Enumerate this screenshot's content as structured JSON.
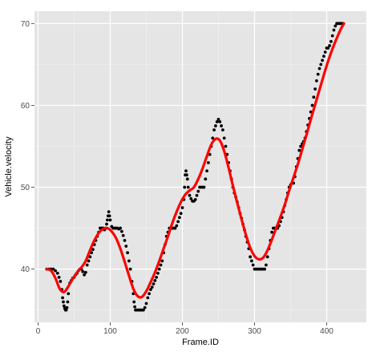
{
  "chart_data": {
    "type": "scatter",
    "xlabel": "Frame.ID",
    "ylabel": "Vehicle.velocity",
    "xlim": [
      -5,
      455
    ],
    "ylim": [
      33.5,
      71.5
    ],
    "x_ticks": [
      0,
      100,
      200,
      300,
      400
    ],
    "x_tick_labels": [
      "0",
      "100",
      "200",
      "300",
      "400"
    ],
    "y_ticks": [
      40,
      50,
      60,
      70
    ],
    "y_tick_labels": [
      "40",
      "50",
      "60",
      "70"
    ],
    "grid": true,
    "legend": "none",
    "colors": {
      "panel": "#e5e5e5",
      "grid_major": "#ffffff",
      "grid_minor": "#f2f2f2",
      "points": "#000000",
      "smooth": "#ff0000"
    },
    "series": [
      {
        "kind": "points",
        "points": [
          [
            12,
            40
          ],
          [
            15,
            40
          ],
          [
            18,
            40
          ],
          [
            21,
            40
          ],
          [
            24,
            39.8
          ],
          [
            27,
            39.5
          ],
          [
            29,
            39
          ],
          [
            31,
            38.5
          ],
          [
            33,
            37.5
          ],
          [
            34,
            36.5
          ],
          [
            35,
            36
          ],
          [
            36,
            35.5
          ],
          [
            37,
            35.2
          ],
          [
            38,
            35
          ],
          [
            39,
            35
          ],
          [
            40,
            35.3
          ],
          [
            41,
            36
          ],
          [
            42,
            37
          ],
          [
            44,
            38.3
          ],
          [
            46,
            38.6
          ],
          [
            48,
            38.9
          ],
          [
            50,
            39
          ],
          [
            52,
            39.3
          ],
          [
            54,
            39.5
          ],
          [
            56,
            39.8
          ],
          [
            58,
            40
          ],
          [
            60,
            40
          ],
          [
            62,
            39.7
          ],
          [
            64,
            39.3
          ],
          [
            66,
            39.6
          ],
          [
            68,
            40.5
          ],
          [
            70,
            41
          ],
          [
            72,
            41.5
          ],
          [
            74,
            42
          ],
          [
            76,
            42.4
          ],
          [
            78,
            43
          ],
          [
            80,
            43.5
          ],
          [
            82,
            44
          ],
          [
            84,
            44.5
          ],
          [
            86,
            45
          ],
          [
            88,
            45
          ],
          [
            90,
            45
          ],
          [
            92,
            44.8
          ],
          [
            94,
            45
          ],
          [
            95,
            45.5
          ],
          [
            96,
            46
          ],
          [
            97,
            46.5
          ],
          [
            98,
            47
          ],
          [
            99,
            46.5
          ],
          [
            100,
            46
          ],
          [
            102,
            45.2
          ],
          [
            104,
            45
          ],
          [
            106,
            45
          ],
          [
            108,
            45
          ],
          [
            110,
            45
          ],
          [
            112,
            44.9
          ],
          [
            114,
            45
          ],
          [
            116,
            44.6
          ],
          [
            118,
            44.1
          ],
          [
            120,
            43.5
          ],
          [
            122,
            42.8
          ],
          [
            124,
            42
          ],
          [
            126,
            41
          ],
          [
            128,
            40
          ],
          [
            130,
            38.5
          ],
          [
            132,
            37
          ],
          [
            133,
            36
          ],
          [
            134,
            35.4
          ],
          [
            135,
            35
          ],
          [
            136,
            35
          ],
          [
            138,
            35
          ],
          [
            140,
            35
          ],
          [
            142,
            35
          ],
          [
            144,
            35
          ],
          [
            146,
            35
          ],
          [
            148,
            35.3
          ],
          [
            150,
            35.8
          ],
          [
            152,
            36.5
          ],
          [
            154,
            37
          ],
          [
            156,
            37.5
          ],
          [
            158,
            37.8
          ],
          [
            160,
            38.2
          ],
          [
            162,
            38.6
          ],
          [
            164,
            39
          ],
          [
            166,
            39.5
          ],
          [
            168,
            40
          ],
          [
            170,
            40.5
          ],
          [
            172,
            41
          ],
          [
            174,
            42
          ],
          [
            176,
            43
          ],
          [
            178,
            44
          ],
          [
            180,
            44.5
          ],
          [
            182,
            45
          ],
          [
            184,
            45
          ],
          [
            186,
            45
          ],
          [
            188,
            45
          ],
          [
            190,
            45
          ],
          [
            192,
            45.3
          ],
          [
            194,
            45.8
          ],
          [
            196,
            46.3
          ],
          [
            198,
            46.8
          ],
          [
            200,
            47.5
          ],
          [
            202,
            48.5
          ],
          [
            203,
            50
          ],
          [
            204,
            51.5
          ],
          [
            205,
            52
          ],
          [
            206,
            51.5
          ],
          [
            207,
            51
          ],
          [
            208,
            50
          ],
          [
            210,
            49
          ],
          [
            212,
            48.6
          ],
          [
            214,
            48.3
          ],
          [
            216,
            48.3
          ],
          [
            218,
            48.5
          ],
          [
            220,
            49
          ],
          [
            222,
            49.5
          ],
          [
            224,
            50
          ],
          [
            226,
            50
          ],
          [
            228,
            50
          ],
          [
            230,
            50
          ],
          [
            232,
            51
          ],
          [
            234,
            52
          ],
          [
            236,
            53
          ],
          [
            238,
            54
          ],
          [
            240,
            55
          ],
          [
            242,
            56
          ],
          [
            244,
            57
          ],
          [
            246,
            57.5
          ],
          [
            248,
            58
          ],
          [
            250,
            58.3
          ],
          [
            252,
            58
          ],
          [
            254,
            57.5
          ],
          [
            256,
            57
          ],
          [
            258,
            56
          ],
          [
            260,
            55
          ],
          [
            262,
            54
          ],
          [
            264,
            53
          ],
          [
            266,
            52
          ],
          [
            268,
            51
          ],
          [
            270,
            50
          ],
          [
            272,
            49.3
          ],
          [
            274,
            48.8
          ],
          [
            276,
            48.2
          ],
          [
            278,
            47.5
          ],
          [
            280,
            46.8
          ],
          [
            282,
            46.2
          ],
          [
            284,
            45.5
          ],
          [
            286,
            44.8
          ],
          [
            288,
            44
          ],
          [
            290,
            43.3
          ],
          [
            292,
            42.5
          ],
          [
            294,
            41.5
          ],
          [
            296,
            41
          ],
          [
            298,
            40.5
          ],
          [
            300,
            40
          ],
          [
            302,
            40
          ],
          [
            304,
            40
          ],
          [
            306,
            40
          ],
          [
            308,
            40
          ],
          [
            310,
            40
          ],
          [
            312,
            40
          ],
          [
            314,
            40
          ],
          [
            316,
            40.5
          ],
          [
            318,
            41.5
          ],
          [
            320,
            42.5
          ],
          [
            322,
            43.5
          ],
          [
            324,
            44.5
          ],
          [
            326,
            45
          ],
          [
            328,
            45
          ],
          [
            330,
            45
          ],
          [
            332,
            45
          ],
          [
            334,
            45.3
          ],
          [
            336,
            45.8
          ],
          [
            338,
            46.3
          ],
          [
            340,
            47
          ],
          [
            342,
            47.8
          ],
          [
            344,
            48.5
          ],
          [
            346,
            49.3
          ],
          [
            348,
            50
          ],
          [
            350,
            50.3
          ],
          [
            352,
            50.5
          ],
          [
            354,
            50.5
          ],
          [
            356,
            51.3
          ],
          [
            358,
            52.5
          ],
          [
            360,
            53.5
          ],
          [
            362,
            54.5
          ],
          [
            364,
            55
          ],
          [
            366,
            55.3
          ],
          [
            368,
            55.6
          ],
          [
            370,
            56
          ],
          [
            372,
            56.8
          ],
          [
            374,
            57.6
          ],
          [
            376,
            58.4
          ],
          [
            378,
            59.2
          ],
          [
            380,
            60
          ],
          [
            382,
            61
          ],
          [
            384,
            62
          ],
          [
            386,
            63
          ],
          [
            388,
            63.8
          ],
          [
            390,
            64.5
          ],
          [
            392,
            65
          ],
          [
            394,
            65.5
          ],
          [
            396,
            66
          ],
          [
            398,
            66.5
          ],
          [
            400,
            67
          ],
          [
            402,
            67
          ],
          [
            404,
            67.3
          ],
          [
            406,
            67.8
          ],
          [
            408,
            68.5
          ],
          [
            410,
            69.2
          ],
          [
            412,
            69.7
          ],
          [
            414,
            70
          ],
          [
            416,
            70
          ],
          [
            418,
            70
          ],
          [
            420,
            70
          ],
          [
            422,
            70
          ]
        ]
      },
      {
        "kind": "smooth",
        "points": [
          [
            12,
            40
          ],
          [
            18,
            39.8
          ],
          [
            24,
            38.9
          ],
          [
            30,
            37.6
          ],
          [
            36,
            37.2
          ],
          [
            42,
            37.9
          ],
          [
            48,
            38.8
          ],
          [
            54,
            39.6
          ],
          [
            60,
            40.2
          ],
          [
            66,
            41
          ],
          [
            72,
            42.3
          ],
          [
            78,
            43.5
          ],
          [
            84,
            44.4
          ],
          [
            90,
            44.9
          ],
          [
            96,
            45
          ],
          [
            102,
            44.6
          ],
          [
            108,
            43.8
          ],
          [
            114,
            42.5
          ],
          [
            120,
            40.9
          ],
          [
            126,
            39.2
          ],
          [
            132,
            37.6
          ],
          [
            138,
            36.7
          ],
          [
            144,
            36.6
          ],
          [
            150,
            37.3
          ],
          [
            156,
            38.4
          ],
          [
            162,
            39.6
          ],
          [
            168,
            41
          ],
          [
            174,
            42.5
          ],
          [
            180,
            44
          ],
          [
            186,
            45.6
          ],
          [
            192,
            47
          ],
          [
            198,
            48.2
          ],
          [
            204,
            49.1
          ],
          [
            210,
            49.6
          ],
          [
            216,
            50
          ],
          [
            222,
            51
          ],
          [
            228,
            52.3
          ],
          [
            234,
            53.8
          ],
          [
            240,
            55.2
          ],
          [
            246,
            55.9
          ],
          [
            252,
            55.7
          ],
          [
            258,
            54.4
          ],
          [
            264,
            52.4
          ],
          [
            270,
            50.2
          ],
          [
            276,
            48.1
          ],
          [
            282,
            46.1
          ],
          [
            288,
            44.2
          ],
          [
            294,
            42.6
          ],
          [
            300,
            41.6
          ],
          [
            306,
            41.2
          ],
          [
            312,
            41.4
          ],
          [
            318,
            42.3
          ],
          [
            324,
            43.6
          ],
          [
            330,
            45
          ],
          [
            336,
            46.4
          ],
          [
            342,
            47.9
          ],
          [
            348,
            49.6
          ],
          [
            354,
            51.2
          ],
          [
            360,
            52.8
          ],
          [
            366,
            54.6
          ],
          [
            372,
            56.4
          ],
          [
            378,
            58.3
          ],
          [
            384,
            60.1
          ],
          [
            390,
            61.9
          ],
          [
            396,
            63.7
          ],
          [
            402,
            65.4
          ],
          [
            408,
            66.9
          ],
          [
            414,
            68.2
          ],
          [
            420,
            69.4
          ],
          [
            424,
            70
          ]
        ]
      }
    ]
  }
}
